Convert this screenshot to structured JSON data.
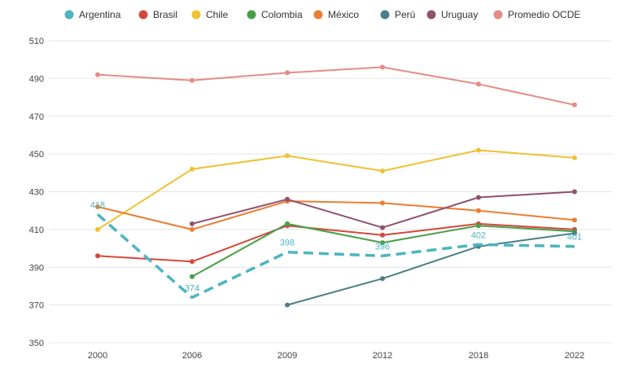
{
  "chart_data": {
    "type": "line",
    "title": "",
    "xlabel": "",
    "ylabel": "",
    "categories": [
      "2000",
      "2006",
      "2009",
      "2012",
      "2018",
      "2022"
    ],
    "ylim": [
      350,
      510
    ],
    "yticks": [
      350,
      370,
      390,
      410,
      430,
      450,
      470,
      490,
      510
    ],
    "grid": "horizontal",
    "legend": "top",
    "series": [
      {
        "name": "Argentina",
        "color": "#4cb5c1",
        "dashed": true,
        "values": [
          418,
          374,
          398,
          396,
          402,
          401
        ],
        "labels": [
          "418",
          "374",
          "398",
          "396",
          "402",
          "401"
        ]
      },
      {
        "name": "Brasil",
        "color": "#d5473c",
        "values": [
          396,
          393,
          412,
          407,
          413,
          410
        ]
      },
      {
        "name": "Chile",
        "color": "#efc232",
        "values": [
          410,
          442,
          449,
          441,
          452,
          448
        ]
      },
      {
        "name": "Colombia",
        "color": "#47a047",
        "values": [
          null,
          385,
          413,
          403,
          412,
          409
        ]
      },
      {
        "name": "México",
        "color": "#ed7d31",
        "values": [
          422,
          410,
          425,
          424,
          420,
          415
        ]
      },
      {
        "name": "Perú",
        "color": "#4c7f87",
        "values": [
          null,
          null,
          370,
          384,
          401,
          408
        ]
      },
      {
        "name": "Uruguay",
        "color": "#92506f",
        "values": [
          null,
          413,
          426,
          411,
          427,
          430
        ]
      },
      {
        "name": "Promedio OCDE",
        "color": "#e58c84",
        "values": [
          492,
          489,
          493,
          496,
          487,
          476
        ]
      }
    ]
  }
}
